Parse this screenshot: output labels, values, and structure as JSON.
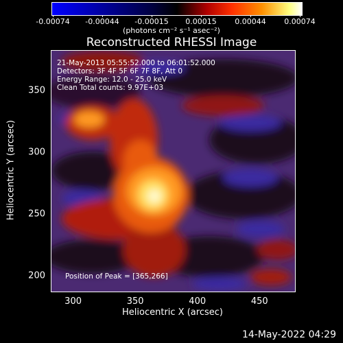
{
  "colorbar": {
    "ticks": [
      "-0.00074",
      "-0.00044",
      "-0.00015",
      "0.00015",
      "0.00044",
      "0.00074"
    ],
    "unit_label": "(photons cm⁻² s⁻¹ asec⁻²)",
    "colors": [
      "#0000ff",
      "#000000",
      "#ff0000",
      "#ffffff"
    ]
  },
  "image": {
    "title": "Reconstructed RHESSI Image",
    "info_lines": [
      "21-May-2013 05:55:52.000 to 06:01:52.000",
      "Detectors: 3F 4F 5F 6F 7F 8F, Att 0",
      "Energy Range: 12.0 - 25.0 keV",
      "Clean     Total counts: 9.97E+03"
    ],
    "peak_label": "Position of Peak = [365,266]"
  },
  "axes": {
    "x_label": "Heliocentric X (arcsec)",
    "y_label": "Heliocentric Y (arcsec)",
    "x_ticks": [
      "300",
      "350",
      "400",
      "450"
    ],
    "y_ticks": [
      "350",
      "300",
      "250",
      "200"
    ],
    "x_range": [
      282,
      478
    ],
    "y_range": [
      188,
      383
    ]
  },
  "footer": {
    "timestamp": "14-May-2022 04:29"
  }
}
